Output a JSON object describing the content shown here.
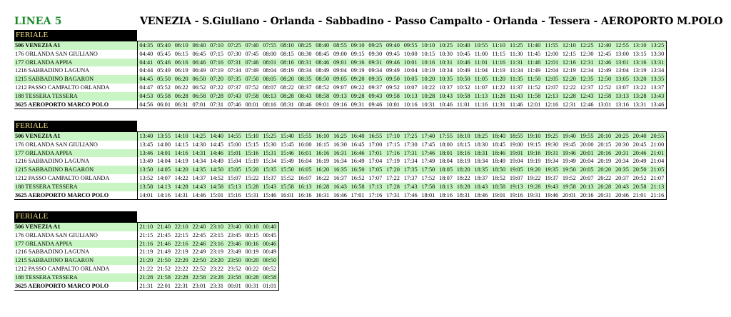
{
  "line_title": "LINEA 5",
  "route_title": "VENEZIA - S.Giuliano - Orlanda - Sabbadino - Passo Campalto - Orlanda - Tessera - AEROPORTO M.POLO",
  "stops": [
    "506 VENEZIA A1",
    "176 ORLANDA SAN GIULIANO",
    "177 ORLANDA APPIA",
    "1216 SABBADINO LAGUNA",
    "1215 SABBADINO BAGARON",
    "1212 PASSO CAMPALTO ORLANDA",
    "188 TESSERA TESSERA",
    "3625 AEROPORTO MARCO POLO"
  ],
  "blocks": [
    {
      "label": "FERIALE",
      "rows": [
        [
          "04:35",
          "05:40",
          "06:10",
          "06:40",
          "07:10",
          "07:25",
          "07:40",
          "07:55",
          "08:10",
          "08:25",
          "08:40",
          "08:55",
          "09:10",
          "09:25",
          "09:40",
          "09:55",
          "10:10",
          "10:25",
          "10:40",
          "10:55",
          "11:10",
          "11:25",
          "11:40",
          "11:55",
          "12:10",
          "12:25",
          "12:40",
          "12:55",
          "13:10",
          "13:25"
        ],
        [
          "04:40",
          "05:45",
          "06:15",
          "06:45",
          "07:15",
          "07:30",
          "07:45",
          "08:00",
          "08:15",
          "08:30",
          "08:45",
          "09:00",
          "09:15",
          "09:30",
          "09:45",
          "10:00",
          "10:15",
          "10:30",
          "10:45",
          "11:00",
          "11:15",
          "11:30",
          "11:45",
          "12:00",
          "12:15",
          "12:30",
          "12:45",
          "13:00",
          "13:15",
          "13:30"
        ],
        [
          "04:41",
          "05:46",
          "06:16",
          "06:46",
          "07:16",
          "07:31",
          "07:46",
          "08:01",
          "08:16",
          "08:31",
          "08:46",
          "09:01",
          "09:16",
          "09:31",
          "09:46",
          "10:01",
          "10:16",
          "10:31",
          "10:46",
          "11:01",
          "11:16",
          "11:31",
          "11:46",
          "12:01",
          "12:16",
          "12:31",
          "12:46",
          "13:01",
          "13:16",
          "13:31"
        ],
        [
          "04:44",
          "05:49",
          "06:19",
          "06:49",
          "07:19",
          "07:34",
          "07:49",
          "08:04",
          "08:19",
          "08:34",
          "08:49",
          "09:04",
          "09:19",
          "09:34",
          "09:49",
          "10:04",
          "10:19",
          "10:34",
          "10:49",
          "11:04",
          "11:19",
          "11:34",
          "11:49",
          "12:04",
          "12:19",
          "12:34",
          "12:49",
          "13:04",
          "13:19",
          "13:34"
        ],
        [
          "04:45",
          "05:50",
          "06:20",
          "06:50",
          "07:20",
          "07:35",
          "07:50",
          "08:05",
          "08:20",
          "08:35",
          "08:50",
          "09:05",
          "09:20",
          "09:35",
          "09:50",
          "10:05",
          "10:20",
          "10:35",
          "10:50",
          "11:05",
          "11:20",
          "11:35",
          "11:50",
          "12:05",
          "12:20",
          "12:35",
          "12:50",
          "13:05",
          "13:20",
          "13:35"
        ],
        [
          "04:47",
          "05:52",
          "06:22",
          "06:52",
          "07:22",
          "07:37",
          "07:52",
          "08:07",
          "08:22",
          "08:37",
          "08:52",
          "09:07",
          "09:22",
          "09:37",
          "09:52",
          "10:07",
          "10:22",
          "10:37",
          "10:52",
          "11:07",
          "11:22",
          "11:37",
          "11:52",
          "12:07",
          "12:22",
          "12:37",
          "12:52",
          "13:07",
          "13:22",
          "13:37"
        ],
        [
          "04:53",
          "05:58",
          "06:28",
          "06:58",
          "07:28",
          "07:43",
          "07:58",
          "08:13",
          "08:28",
          "08:43",
          "08:58",
          "09:13",
          "09:28",
          "09:43",
          "09:58",
          "10:13",
          "10:28",
          "10:43",
          "10:58",
          "11:13",
          "11:28",
          "11:43",
          "11:58",
          "12:13",
          "12:28",
          "12:43",
          "12:58",
          "13:13",
          "13:28",
          "13:43"
        ],
        [
          "04:56",
          "06:01",
          "06:31",
          "07:01",
          "07:31",
          "07:46",
          "08:01",
          "08:16",
          "08:31",
          "08:46",
          "09:01",
          "09:16",
          "09:31",
          "09:46",
          "10:01",
          "10:16",
          "10:31",
          "10:46",
          "11:01",
          "11:16",
          "11:31",
          "11:46",
          "12:01",
          "12:16",
          "12:31",
          "12:46",
          "13:01",
          "13:16",
          "13:31",
          "13:46"
        ]
      ]
    },
    {
      "label": "FERIALE",
      "rows": [
        [
          "13:40",
          "13:55",
          "14:10",
          "14:25",
          "14:40",
          "14:55",
          "15:10",
          "15:25",
          "15:40",
          "15:55",
          "16:10",
          "16:25",
          "16:40",
          "16:55",
          "17:10",
          "17:25",
          "17:40",
          "17:55",
          "18:10",
          "18:25",
          "18:40",
          "18:55",
          "19:10",
          "19:25",
          "19:40",
          "19:55",
          "20:10",
          "20:25",
          "20:40",
          "20:55"
        ],
        [
          "13:45",
          "14:00",
          "14:15",
          "14:30",
          "14:45",
          "15:00",
          "15:15",
          "15:30",
          "15:45",
          "16:00",
          "16:15",
          "16:30",
          "16:45",
          "17:00",
          "17:15",
          "17:30",
          "17:45",
          "18:00",
          "18:15",
          "18:30",
          "18:45",
          "19:00",
          "19:15",
          "19:30",
          "19:45",
          "20:00",
          "20:15",
          "20:30",
          "20:45",
          "21:00"
        ],
        [
          "13:46",
          "14:01",
          "14:16",
          "14:31",
          "14:46",
          "15:01",
          "15:16",
          "15:31",
          "15:46",
          "16:01",
          "16:16",
          "16:31",
          "16:46",
          "17:01",
          "17:16",
          "17:31",
          "17:46",
          "18:01",
          "18:16",
          "18:31",
          "18:46",
          "19:01",
          "19:16",
          "19:31",
          "19:46",
          "20:01",
          "20:16",
          "20:31",
          "20:46",
          "21:01"
        ],
        [
          "13:49",
          "14:04",
          "14:19",
          "14:34",
          "14:49",
          "15:04",
          "15:19",
          "15:34",
          "15:49",
          "16:04",
          "16:19",
          "16:34",
          "16:49",
          "17:04",
          "17:19",
          "17:34",
          "17:49",
          "18:04",
          "18:19",
          "18:34",
          "18:49",
          "19:04",
          "19:19",
          "19:34",
          "19:49",
          "20:04",
          "20:19",
          "20:34",
          "20:49",
          "21:04"
        ],
        [
          "13:50",
          "14:05",
          "14:20",
          "14:35",
          "14:50",
          "15:05",
          "15:20",
          "15:35",
          "15:50",
          "16:05",
          "16:20",
          "16:35",
          "16:50",
          "17:05",
          "17:20",
          "17:35",
          "17:50",
          "18:05",
          "18:20",
          "18:35",
          "18:50",
          "19:05",
          "19:20",
          "19:35",
          "19:50",
          "20:05",
          "20:20",
          "20:35",
          "20:50",
          "21:05"
        ],
        [
          "13:52",
          "14:07",
          "14:22",
          "14:37",
          "14:52",
          "15:07",
          "15:22",
          "15:37",
          "15:52",
          "16:07",
          "16:22",
          "16:37",
          "16:52",
          "17:07",
          "17:22",
          "17:37",
          "17:52",
          "18:07",
          "18:22",
          "18:37",
          "18:52",
          "19:07",
          "19:22",
          "19:37",
          "19:52",
          "20:07",
          "20:22",
          "20:37",
          "20:52",
          "21:07"
        ],
        [
          "13:58",
          "14:13",
          "14:28",
          "14:43",
          "14:58",
          "15:13",
          "15:28",
          "15:43",
          "15:58",
          "16:13",
          "16:28",
          "16:43",
          "16:58",
          "17:13",
          "17:28",
          "17:43",
          "17:58",
          "18:13",
          "18:28",
          "18:43",
          "18:58",
          "19:13",
          "19:28",
          "19:43",
          "19:58",
          "20:13",
          "20:28",
          "20:43",
          "20:58",
          "21:13"
        ],
        [
          "14:01",
          "14:16",
          "14:31",
          "14:46",
          "15:01",
          "15:16",
          "15:31",
          "15:46",
          "16:01",
          "16:16",
          "16:31",
          "16:46",
          "17:01",
          "17:16",
          "17:31",
          "17:46",
          "18:01",
          "18:16",
          "18:31",
          "18:46",
          "19:01",
          "19:16",
          "19:31",
          "19:46",
          "20:01",
          "20:16",
          "20:31",
          "20:46",
          "21:01",
          "21:16"
        ]
      ]
    },
    {
      "label": "FERIALE",
      "rows": [
        [
          "21:10",
          "21:40",
          "22:10",
          "22:40",
          "23:10",
          "23:40",
          "00:10",
          "00:40"
        ],
        [
          "21:15",
          "21:45",
          "22:15",
          "22:45",
          "23:15",
          "23:45",
          "00:15",
          "00:45"
        ],
        [
          "21:16",
          "21:46",
          "22:16",
          "22:46",
          "23:16",
          "23:46",
          "00:16",
          "00:46"
        ],
        [
          "21:19",
          "21:49",
          "22:19",
          "22:49",
          "23:19",
          "23:49",
          "00:19",
          "00:49"
        ],
        [
          "21:20",
          "21:50",
          "22:20",
          "22:50",
          "23:20",
          "23:50",
          "00:20",
          "00:50"
        ],
        [
          "21:22",
          "21:52",
          "22:22",
          "22:52",
          "23:22",
          "23:52",
          "00:22",
          "00:52"
        ],
        [
          "21:28",
          "21:58",
          "22:28",
          "22:58",
          "23:28",
          "23:58",
          "00:28",
          "00:58"
        ],
        [
          "21:31",
          "22:01",
          "22:31",
          "23:01",
          "23:31",
          "00:01",
          "00:31",
          "01:01"
        ]
      ]
    }
  ],
  "colors": {
    "row_green": "#c8f5c3",
    "title_green": "#1a8a2a",
    "label_text": "#f2e28a"
  }
}
